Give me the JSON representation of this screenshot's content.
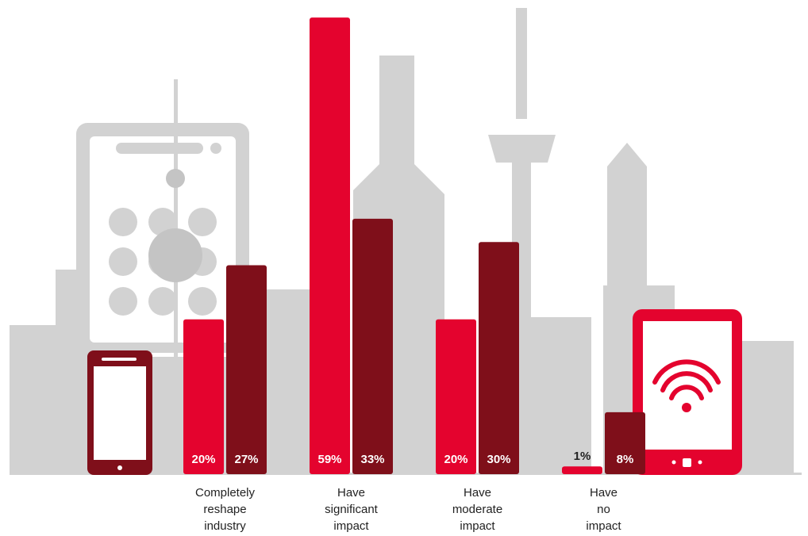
{
  "chart_data": {
    "type": "bar",
    "categories": [
      "Completely reshape industry",
      "Have significant impact",
      "Have moderate impact",
      "Have no impact"
    ],
    "series": [
      {
        "color": "#e4032e",
        "values": [
          20,
          59,
          20,
          1
        ],
        "value_labels": [
          "20%",
          "59%",
          "20%",
          "1%"
        ]
      },
      {
        "color": "#7f0f1a",
        "values": [
          27,
          33,
          30,
          8
        ],
        "value_labels": [
          "27%",
          "33%",
          "30%",
          "8%"
        ]
      }
    ]
  }
}
